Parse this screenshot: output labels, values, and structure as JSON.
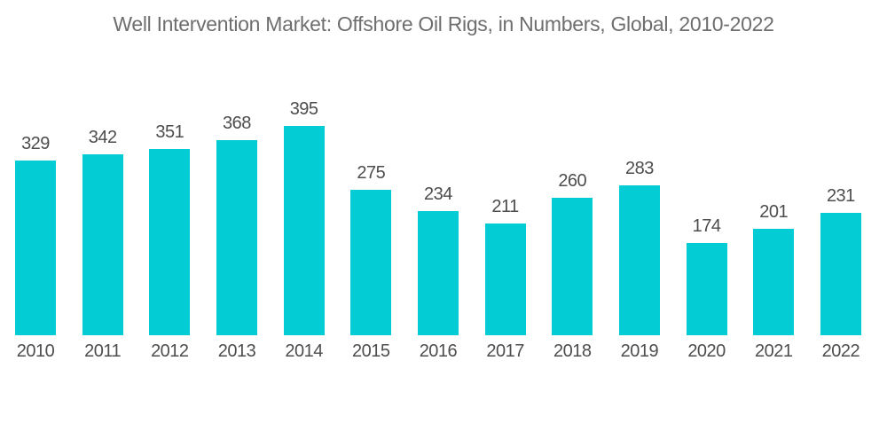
{
  "title": "Well Intervention Market: Offshore Oil Rigs, in Numbers, Global, 2010-2022",
  "colors": {
    "bar": "#03ccd4",
    "title_text": "#6e6e6e",
    "label_text": "#4d4d4d",
    "background": "#ffffff"
  },
  "chart_data": {
    "type": "bar",
    "title": "Well Intervention Market: Offshore Oil Rigs, in Numbers, Global, 2010-2022",
    "categories": [
      "2010",
      "2011",
      "2012",
      "2013",
      "2014",
      "2015",
      "2016",
      "2017",
      "2018",
      "2019",
      "2020",
      "2021",
      "2022"
    ],
    "values": [
      329,
      342,
      351,
      368,
      395,
      275,
      234,
      211,
      260,
      283,
      174,
      201,
      231
    ],
    "xlabel": "",
    "ylabel": "",
    "ylim": [
      0,
      395
    ],
    "grid": false,
    "legend": false,
    "value_labels_shown": true,
    "bar_color": "#03ccd4"
  }
}
